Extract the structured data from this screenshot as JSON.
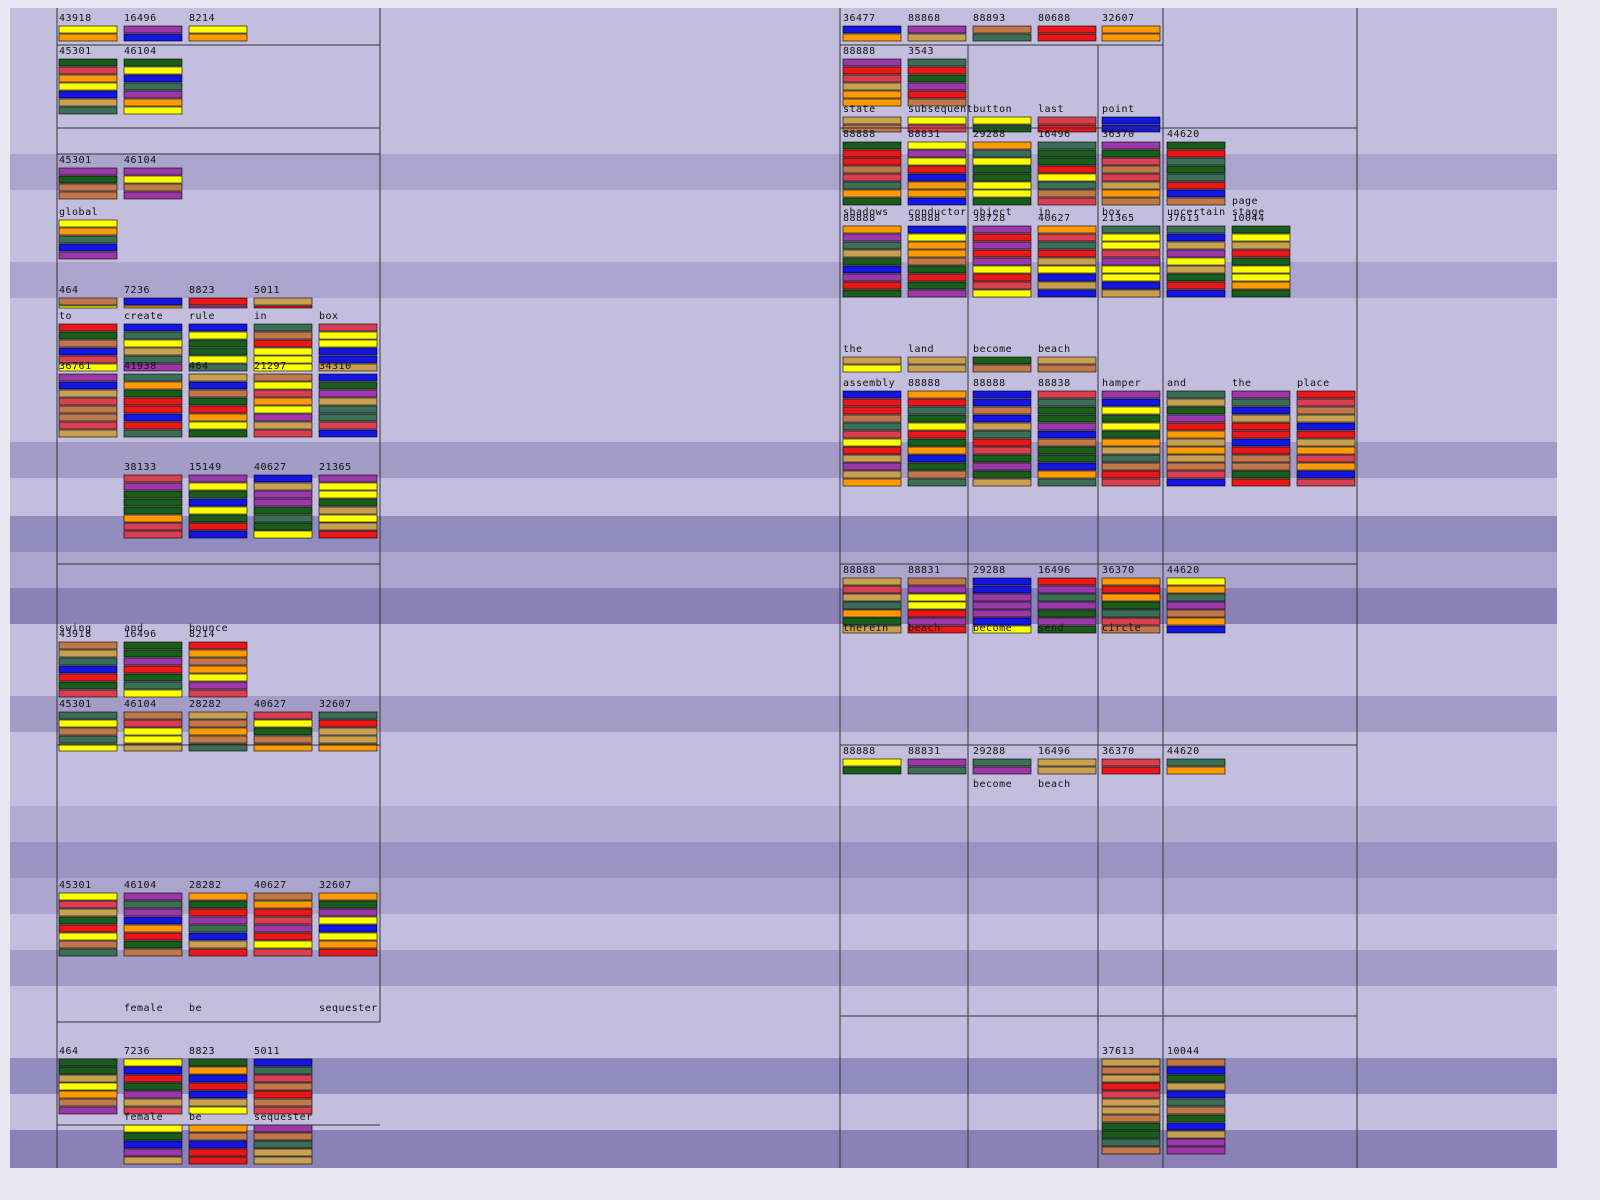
{
  "left_rows": [
    [
      "43918",
      "16496",
      "8214"
    ],
    [
      "45301",
      "46104"
    ],
    [
      "45301",
      "46104"
    ],
    [
      "global"
    ],
    [
      "464",
      "7236",
      "8823",
      "5011"
    ],
    [
      "to",
      "create",
      "rule",
      "in",
      "box"
    ],
    [
      "36761",
      "41938",
      "464",
      "21297",
      "34310"
    ],
    [
      null,
      "38133",
      "15149",
      "40627",
      "21365"
    ],
    [
      "swing",
      "and",
      "bounce"
    ],
    [
      "43918",
      "16496",
      "8214"
    ],
    [
      "45301",
      "46104",
      "28282",
      "40627",
      "32607"
    ],
    [
      "45301",
      "46104",
      "28282",
      "40627",
      "32607"
    ],
    [
      null,
      "female",
      "be",
      null,
      "sequester"
    ],
    [
      "464",
      "7236",
      "8823",
      "5011"
    ],
    [
      null,
      "female",
      "be",
      "sequester"
    ]
  ],
  "right_rows": [
    [
      "36477",
      "88868",
      "88893",
      "80688",
      "32607"
    ],
    [
      "88888",
      "3543"
    ],
    [
      "state",
      "subsequent",
      "button",
      "last",
      "point"
    ],
    [
      "88888",
      "88831",
      "29288",
      "16496",
      "36370",
      "44620"
    ],
    [
      null,
      null,
      null,
      null,
      null,
      null,
      "page"
    ],
    [
      "shadows",
      "conductor",
      "object",
      "in",
      "box",
      "uncertain",
      "stage"
    ],
    [
      "88888",
      "38888",
      "38728",
      "40627",
      "21365",
      "37613",
      "10044"
    ],
    [
      "the",
      "land",
      "become",
      "beach"
    ],
    [
      "assembly",
      "88888",
      "88888",
      "88838",
      "hamper",
      "and",
      "the",
      "place"
    ],
    [
      "88888",
      "88831",
      "29288",
      "16496",
      "36370",
      "44620"
    ],
    [
      "therein",
      "beach",
      "become",
      "send",
      "circle"
    ],
    [
      "88888",
      "88831",
      "29288",
      "16496",
      "36370",
      "44620"
    ],
    [
      null,
      null,
      "become",
      "beach"
    ],
    [
      null,
      null,
      null,
      null,
      "37613",
      "10044"
    ]
  ]
}
